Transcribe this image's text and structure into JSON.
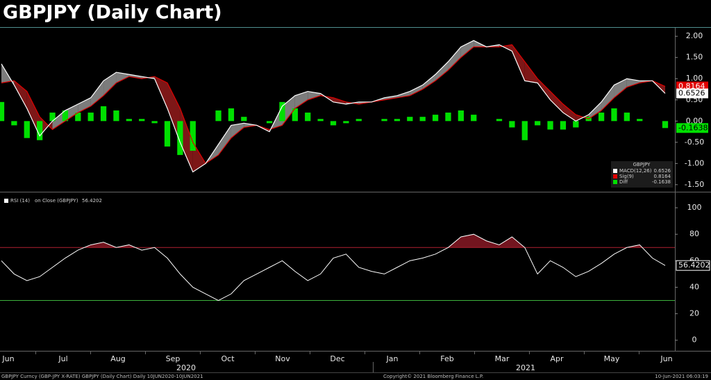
{
  "title": "GBPJPY (Daily Chart)",
  "chart_data": [
    {
      "type": "macd",
      "legend_title": "GBPJPY",
      "ylim": [
        -1.65,
        2.2
      ],
      "yticks": [
        {
          "value": 2,
          "label": "2.00"
        },
        {
          "value": 1.5,
          "label": "1.50"
        },
        {
          "value": 1,
          "label": "1.00"
        },
        {
          "value": 0.5,
          "label": "0.50"
        },
        {
          "value": 0,
          "label": "0.00"
        },
        {
          "value": -0.5,
          "label": "-0.50"
        },
        {
          "value": -1,
          "label": "-1.00"
        },
        {
          "value": -1.5,
          "label": "-1.50"
        }
      ],
      "series": [
        {
          "name": "MACD(12,26)",
          "color": "#ffffff",
          "values": [
            1.35,
            0.85,
            0.3,
            -0.35,
            0.0,
            0.25,
            0.4,
            0.55,
            0.95,
            1.15,
            1.1,
            1.05,
            1.0,
            0.3,
            -0.5,
            -1.2,
            -1.0,
            -0.55,
            -0.1,
            -0.05,
            -0.1,
            -0.25,
            0.35,
            0.6,
            0.7,
            0.65,
            0.45,
            0.4,
            0.45,
            0.45,
            0.55,
            0.6,
            0.7,
            0.85,
            1.1,
            1.4,
            1.75,
            1.9,
            1.75,
            1.8,
            1.65,
            0.95,
            0.9,
            0.5,
            0.2,
            0.0,
            0.15,
            0.45,
            0.85,
            1.0,
            0.95,
            0.95,
            0.6526
          ]
        },
        {
          "name": "Sig(9)",
          "color": "#e00000",
          "values": [
            0.9,
            0.95,
            0.7,
            0.1,
            -0.2,
            0.0,
            0.2,
            0.35,
            0.6,
            0.9,
            1.05,
            1.0,
            1.05,
            0.9,
            0.3,
            -0.5,
            -1.0,
            -0.8,
            -0.4,
            -0.15,
            -0.1,
            -0.2,
            -0.1,
            0.3,
            0.5,
            0.6,
            0.55,
            0.45,
            0.4,
            0.45,
            0.5,
            0.55,
            0.6,
            0.75,
            0.95,
            1.2,
            1.5,
            1.75,
            1.75,
            1.75,
            1.8,
            1.4,
            1.0,
            0.7,
            0.4,
            0.15,
            0.05,
            0.25,
            0.55,
            0.8,
            0.9,
            0.95,
            0.8164
          ]
        },
        {
          "name": "Diff",
          "color": "#00e000",
          "values": [
            0.45,
            -0.1,
            -0.4,
            -0.45,
            0.2,
            0.25,
            0.2,
            0.2,
            0.35,
            0.25,
            0.05,
            0.05,
            -0.05,
            -0.6,
            -0.8,
            -0.7,
            0.0,
            0.25,
            0.3,
            0.1,
            0.0,
            -0.05,
            0.45,
            0.3,
            0.2,
            0.05,
            -0.1,
            -0.05,
            0.05,
            0.0,
            0.05,
            0.05,
            0.1,
            0.1,
            0.15,
            0.2,
            0.25,
            0.15,
            0.0,
            0.05,
            -0.15,
            -0.45,
            -0.1,
            -0.2,
            -0.2,
            -0.15,
            0.1,
            0.2,
            0.3,
            0.2,
            0.05,
            0.0,
            -0.1638
          ]
        }
      ]
    },
    {
      "type": "rsi",
      "subtitle": "on Close (GBPJPY)",
      "ylim": [
        -8,
        110
      ],
      "yticks": [
        0,
        20,
        40,
        60,
        80,
        100
      ],
      "bands": [
        30,
        70
      ],
      "band_colors": [
        "#3cb33c",
        "#b02030"
      ],
      "series": [
        {
          "name": "RSI (14)",
          "color": "#ffffff",
          "values": [
            60,
            50,
            45,
            48,
            55,
            62,
            68,
            72,
            74,
            70,
            72,
            68,
            70,
            62,
            50,
            40,
            35,
            30,
            35,
            45,
            50,
            55,
            60,
            52,
            45,
            50,
            62,
            65,
            55,
            52,
            50,
            55,
            60,
            62,
            65,
            70,
            78,
            80,
            75,
            72,
            78,
            70,
            50,
            60,
            55,
            48,
            52,
            58,
            65,
            70,
            72,
            62,
            56.4202
          ]
        }
      ]
    }
  ],
  "x_axis": {
    "months": [
      "Jun",
      "Jul",
      "Aug",
      "Sep",
      "Oct",
      "Nov",
      "Dec",
      "Jan",
      "Feb",
      "Mar",
      "Apr",
      "May",
      "Jun"
    ],
    "years": [
      "2020",
      "2021"
    ]
  },
  "footer": {
    "left": "GBPJPY Curncy (GBP-JPY X-RATE) GBPJPY (Daily Chart)  Daily 10JUN2020-10JUN2021",
    "center": "Copyright© 2021 Bloomberg Finance L.P.",
    "right": "10-Jun-2021 06:03:19"
  }
}
